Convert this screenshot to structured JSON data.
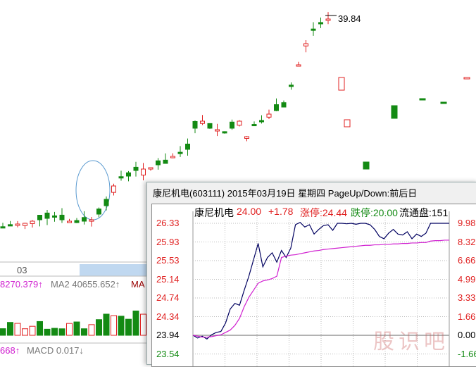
{
  "background_chart": {
    "peak_label": "39.84",
    "date_label": "03",
    "indicator_row": {
      "ma1": "8270.379↑",
      "ma2": "MA2 40655.652↑",
      "ma3": "MA"
    },
    "macd_row": {
      "left": "668↑",
      "macd": "MACD 0.017↓"
    },
    "colors": {
      "up": "#e02020",
      "down": "#138a13",
      "ma": "#d020d0"
    }
  },
  "popup": {
    "title": "康尼机电(603111) 2015年03月19日 星期四 PageUp/Down:前后日",
    "header": {
      "name": "康尼机电",
      "price": "24.00",
      "change": "+1.78",
      "limit_up": "涨停:24.44",
      "limit_down": "跌停:20.00",
      "float": "流通盘:151"
    },
    "left_axis": [
      "26.33",
      "25.93",
      "25.53",
      "25.14",
      "24.74",
      "24.34",
      "23.94",
      "23.54"
    ],
    "right_axis": [
      "9.98",
      "8.32",
      "6.66",
      "4.99",
      "3.33",
      "1.66",
      "0.00",
      "-1.66"
    ],
    "colors": {
      "price_line": "#000060",
      "avg_line": "#d020d0",
      "up": "#e02020",
      "down": "#138a13"
    }
  },
  "watermark": "股识吧",
  "chart_data": {
    "type": "line",
    "yticks_left": [
      26.33,
      25.93,
      25.53,
      25.14,
      24.74,
      24.34,
      23.94,
      23.54
    ],
    "yticks_right": [
      9.98,
      8.32,
      6.66,
      4.99,
      3.33,
      1.66,
      0.0,
      -1.66
    ],
    "ylim": [
      23.54,
      26.33
    ],
    "grid": true,
    "series": [
      {
        "values": [
          23.94,
          23.88,
          23.92,
          23.86,
          23.95,
          24.0,
          24.02,
          24.2,
          24.5,
          24.62,
          24.58,
          24.9,
          25.2,
          25.55,
          25.9,
          25.4,
          25.6,
          25.7,
          25.5,
          25.75,
          25.6,
          25.8,
          26.3,
          26.35,
          26.25,
          26.3,
          26.1,
          26.2,
          26.28,
          26.3,
          26.18,
          26.33,
          26.33,
          26.32,
          26.33,
          26.31,
          26.33,
          26.33,
          26.3,
          26.2,
          26.05,
          26.0,
          26.12,
          26.2,
          26.1,
          26.08,
          26.15,
          26.0,
          26.1,
          26.05,
          26.12,
          26.33,
          26.33,
          26.33,
          26.33,
          26.33
        ]
      },
      {
        "values": [
          23.94,
          23.92,
          23.9,
          23.9,
          23.91,
          23.93,
          23.95,
          24.0,
          24.05,
          24.15,
          24.3,
          24.55,
          24.75,
          24.9,
          25.05,
          25.1,
          25.12,
          25.15,
          25.2,
          25.6,
          25.63,
          25.65,
          25.66,
          25.68,
          25.7,
          25.72,
          25.74,
          25.75,
          25.77,
          25.78,
          25.79,
          25.8,
          25.81,
          25.82,
          25.83,
          25.84,
          25.85,
          25.86,
          25.86,
          25.87,
          25.87,
          25.88,
          25.88,
          25.89,
          25.89,
          25.9,
          25.9,
          25.91,
          25.91,
          25.92,
          25.92,
          25.95,
          25.96,
          25.96,
          25.97,
          25.97
        ]
      }
    ]
  }
}
